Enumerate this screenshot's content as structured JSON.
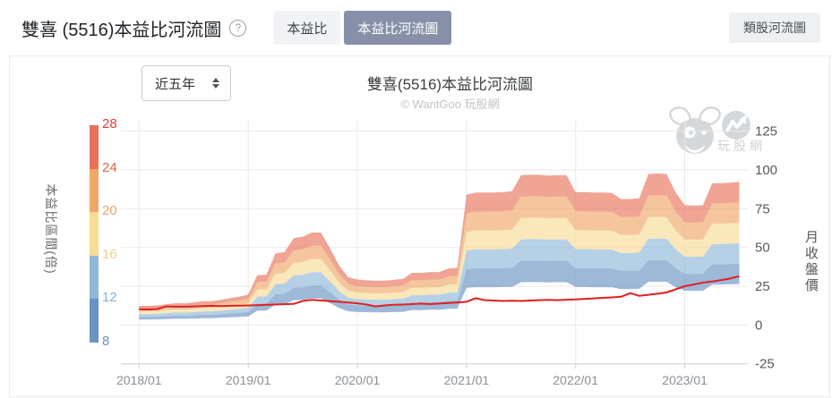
{
  "header": {
    "title": "雙喜 (5516)本益比河流圖",
    "help_glyph": "?",
    "tabs": [
      {
        "label": "本益比",
        "active": false
      },
      {
        "label": "本益比河流圖",
        "active": true
      }
    ],
    "right_button": "類股河流圖"
  },
  "toolbar": {
    "range_label": "近五年"
  },
  "chart": {
    "title": "雙喜(5516)本益比河流圖",
    "subtitle": "© WantGoo 玩股網",
    "watermark_text": "玩股網",
    "left_axis_title": "本益比區間(倍)",
    "right_axis_title": "月收盤價"
  },
  "chart_data": {
    "type": "area",
    "title": "雙喜(5516)本益比河流圖",
    "subtitle": "© WantGoo 玩股網",
    "xlabel": "",
    "ylabel_left": "本益比區間(倍)",
    "ylabel_right": "月收盤價",
    "grid": true,
    "legend": false,
    "x": [
      "2018/01",
      "2018/02",
      "2018/03",
      "2018/04",
      "2018/05",
      "2018/06",
      "2018/07",
      "2018/08",
      "2018/09",
      "2018/10",
      "2018/11",
      "2018/12",
      "2019/01",
      "2019/02",
      "2019/03",
      "2019/04",
      "2019/05",
      "2019/06",
      "2019/07",
      "2019/08",
      "2019/09",
      "2019/10",
      "2019/11",
      "2019/12",
      "2020/01",
      "2020/02",
      "2020/03",
      "2020/04",
      "2020/05",
      "2020/06",
      "2020/07",
      "2020/08",
      "2020/09",
      "2020/10",
      "2020/11",
      "2020/12",
      "2021/01",
      "2021/02",
      "2021/03",
      "2021/04",
      "2021/05",
      "2021/06",
      "2021/07",
      "2021/08",
      "2021/09",
      "2021/10",
      "2021/11",
      "2021/12",
      "2022/01",
      "2022/02",
      "2022/03",
      "2022/04",
      "2022/05",
      "2022/06",
      "2022/07",
      "2022/08",
      "2022/09",
      "2022/10",
      "2022/11",
      "2022/12",
      "2023/01",
      "2023/02",
      "2023/03",
      "2023/04",
      "2023/05",
      "2023/06",
      "2023/07"
    ],
    "x_tick_labels": [
      "2018/01",
      "2019/01",
      "2020/01",
      "2021/01",
      "2022/01",
      "2023/01"
    ],
    "pe_bounds": [
      8,
      12,
      16,
      20,
      24,
      28
    ],
    "pe_band_colors": [
      "#6a92c3",
      "#8fb8d9",
      "#f8dc96",
      "#f0a868",
      "#e8735a"
    ],
    "pe_label_colors": [
      "#6a92c4",
      "#86b0d6",
      "#eed088",
      "#eea266",
      "#e2604e",
      "#e5383e"
    ],
    "band_opacity": 0.65,
    "eps_ttm": [
      0.44,
      0.44,
      0.45,
      0.48,
      0.5,
      0.5,
      0.52,
      0.55,
      0.55,
      0.58,
      0.62,
      0.65,
      0.7,
      1.15,
      1.16,
      1.65,
      1.68,
      2.0,
      2.03,
      2.13,
      2.13,
      1.76,
      1.37,
      1.1,
      1.05,
      1.03,
      1.02,
      1.02,
      1.04,
      1.06,
      1.2,
      1.2,
      1.22,
      1.22,
      1.3,
      1.32,
      3.0,
      3.05,
      3.05,
      3.05,
      3.06,
      3.08,
      3.45,
      3.46,
      3.46,
      3.44,
      3.45,
      3.45,
      3.06,
      3.06,
      3.05,
      3.05,
      3.04,
      2.9,
      2.9,
      2.92,
      3.48,
      3.49,
      3.48,
      3.05,
      2.76,
      2.75,
      2.76,
      3.26,
      3.27,
      3.28,
      3.3
    ],
    "price_line": {
      "name": "月收盤價",
      "color": "#e01f1f",
      "values": [
        10.1,
        10.0,
        10.3,
        12.0,
        11.8,
        11.8,
        12.0,
        12.2,
        12.4,
        12.2,
        12.4,
        12.5,
        12.6,
        12.8,
        13.0,
        13.2,
        13.4,
        13.6,
        15.5,
        16.2,
        15.8,
        15.3,
        15.0,
        14.5,
        14.0,
        13.2,
        12.0,
        12.6,
        13.0,
        13.2,
        13.5,
        13.8,
        13.5,
        13.8,
        14.2,
        14.5,
        15.0,
        17.3,
        16.0,
        15.8,
        15.5,
        15.6,
        15.5,
        15.8,
        16.0,
        16.2,
        16.0,
        16.3,
        16.5,
        16.8,
        17.2,
        17.5,
        17.8,
        18.2,
        20.5,
        18.8,
        19.5,
        20.2,
        21.0,
        23.0,
        25.0,
        26.2,
        27.3,
        28.0,
        29.0,
        30.0,
        31.5
      ]
    },
    "y_right": {
      "title": "月收盤價",
      "min": -25,
      "max": 125,
      "ticks": [
        125,
        100,
        75,
        50,
        25,
        0,
        -25
      ]
    },
    "y_left": {
      "title": "本益比區間(倍)",
      "ticks": [
        28,
        24,
        20,
        16,
        12,
        8
      ]
    },
    "colors": {
      "grid": "#e9e9e9",
      "axis": "#cccccc",
      "x_tick_label": "#8b9095",
      "y_tick_label": "#55595e"
    }
  }
}
